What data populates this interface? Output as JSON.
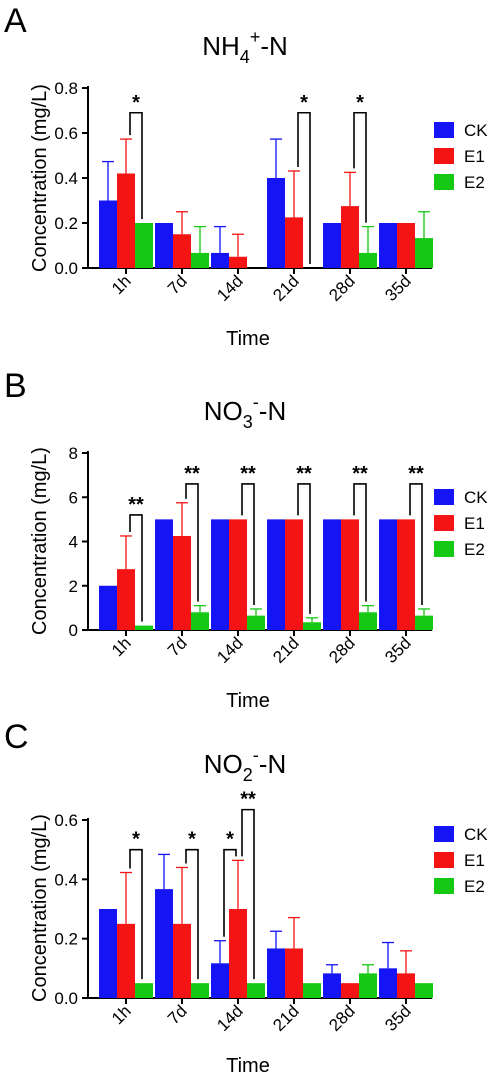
{
  "colors": {
    "CK": "#1414f5",
    "E1": "#f51414",
    "E2": "#14c814",
    "axis": "#000000"
  },
  "chart_data": [
    {
      "type": "bar",
      "panel_label": "A",
      "title_main": "NH",
      "title_sub": "4",
      "title_sup": "+",
      "title_tail": "-N",
      "xlabel": "Time",
      "ylabel": "Concentration (mg/L)",
      "ylim": [
        0,
        0.8
      ],
      "yticks": [
        "0.0",
        "0.2",
        "0.4",
        "0.6",
        "0.8"
      ],
      "yticks_values": [
        0,
        0.2,
        0.4,
        0.6,
        0.8
      ],
      "categories": [
        "1h",
        "7d",
        "14d",
        "21d",
        "28d",
        "35d"
      ],
      "grid": false,
      "legend_position": "right",
      "series": [
        {
          "name": "CK",
          "values": [
            0.3,
            0.2,
            0.067,
            0.4,
            0.2,
            0.2
          ],
          "errors": [
            0.173,
            0,
            0.117,
            0.173,
            0,
            0
          ]
        },
        {
          "name": "E1",
          "values": [
            0.42,
            0.15,
            0.05,
            0.225,
            0.275,
            0.2
          ],
          "errors": [
            0.153,
            0.1,
            0.1,
            0.206,
            0.15,
            0
          ]
        },
        {
          "name": "E2",
          "values": [
            0.2,
            0.067,
            0,
            0,
            0.067,
            0.133
          ],
          "errors": [
            0,
            0.117,
            0,
            0,
            0.117,
            0.117
          ]
        }
      ],
      "significance": [
        {
          "category": 0,
          "label": "*",
          "from": 1,
          "to": 2,
          "level": 0.69
        },
        {
          "category": 3,
          "label": "*",
          "from": 1,
          "to": 2,
          "level": 0.69
        },
        {
          "category": 4,
          "label": "*",
          "from": 1,
          "to": 2,
          "level": 0.69
        }
      ]
    },
    {
      "type": "bar",
      "panel_label": "B",
      "title_main": "NO",
      "title_sub": "3",
      "title_sup": "-",
      "title_tail": "-N",
      "xlabel": "Time",
      "ylabel": "Concentration (mg/L)",
      "ylim": [
        0,
        8
      ],
      "yticks": [
        "0",
        "2",
        "4",
        "6",
        "8"
      ],
      "yticks_values": [
        0,
        2,
        4,
        6,
        8
      ],
      "categories": [
        "1h",
        "7d",
        "14d",
        "21d",
        "28d",
        "35d"
      ],
      "grid": false,
      "legend_position": "right",
      "series": [
        {
          "name": "CK",
          "values": [
            2.0,
            5.0,
            5.0,
            5.0,
            5.0,
            5.0
          ],
          "errors": [
            0,
            0,
            0,
            0,
            0,
            0
          ]
        },
        {
          "name": "E1",
          "values": [
            2.75,
            4.25,
            5.0,
            5.0,
            5.0,
            5.0
          ],
          "errors": [
            1.5,
            1.5,
            0,
            0,
            0,
            0
          ]
        },
        {
          "name": "E2",
          "values": [
            0.2,
            0.8,
            0.65,
            0.35,
            0.8,
            0.65
          ],
          "errors": [
            0,
            0.3,
            0.3,
            0.2,
            0.3,
            0.3
          ]
        }
      ],
      "significance": [
        {
          "category": 0,
          "label": "**",
          "from": 1,
          "to": 2,
          "level": 5.2
        },
        {
          "category": 1,
          "label": "**",
          "from": 1,
          "to": 2,
          "level": 6.6
        },
        {
          "category": 2,
          "label": "**",
          "from": 1,
          "to": 2,
          "level": 6.6
        },
        {
          "category": 3,
          "label": "**",
          "from": 1,
          "to": 2,
          "level": 6.6
        },
        {
          "category": 4,
          "label": "**",
          "from": 1,
          "to": 2,
          "level": 6.6
        },
        {
          "category": 5,
          "label": "**",
          "from": 1,
          "to": 2,
          "level": 6.6
        }
      ]
    },
    {
      "type": "bar",
      "panel_label": "C",
      "title_main": "NO",
      "title_sub": "2",
      "title_sup": "-",
      "title_tail": "-N",
      "xlabel": "Time",
      "ylabel": "Concentration (mg/L)",
      "ylim": [
        0,
        0.6
      ],
      "yticks": [
        "0.0",
        "0.2",
        "0.4",
        "0.6"
      ],
      "yticks_values": [
        0,
        0.2,
        0.4,
        0.6
      ],
      "categories": [
        "1h",
        "7d",
        "14d",
        "21d",
        "28d",
        "35d"
      ],
      "grid": false,
      "legend_position": "right",
      "series": [
        {
          "name": "CK",
          "values": [
            0.3,
            0.367,
            0.117,
            0.167,
            0.083,
            0.1
          ],
          "errors": [
            0,
            0.117,
            0.076,
            0.058,
            0.029,
            0.087
          ]
        },
        {
          "name": "E1",
          "values": [
            0.25,
            0.25,
            0.3,
            0.167,
            0.05,
            0.083
          ],
          "errors": [
            0.173,
            0.19,
            0.164,
            0.104,
            0,
            0.076
          ]
        },
        {
          "name": "E2",
          "values": [
            0.05,
            0.05,
            0.05,
            0.05,
            0.083,
            0.05
          ],
          "errors": [
            0,
            0,
            0,
            0,
            0.029,
            0
          ]
        }
      ],
      "significance": [
        {
          "category": 0,
          "label": "*",
          "from": 1,
          "to": 2,
          "level": 0.5
        },
        {
          "category": 1,
          "label": "*",
          "from": 1,
          "to": 2,
          "level": 0.5
        },
        {
          "category": 2,
          "label": "*",
          "from": 0,
          "to": 1,
          "level": 0.5
        },
        {
          "category": 2,
          "label": "**",
          "from": 1,
          "to": 2,
          "level": 0.635
        }
      ]
    }
  ]
}
